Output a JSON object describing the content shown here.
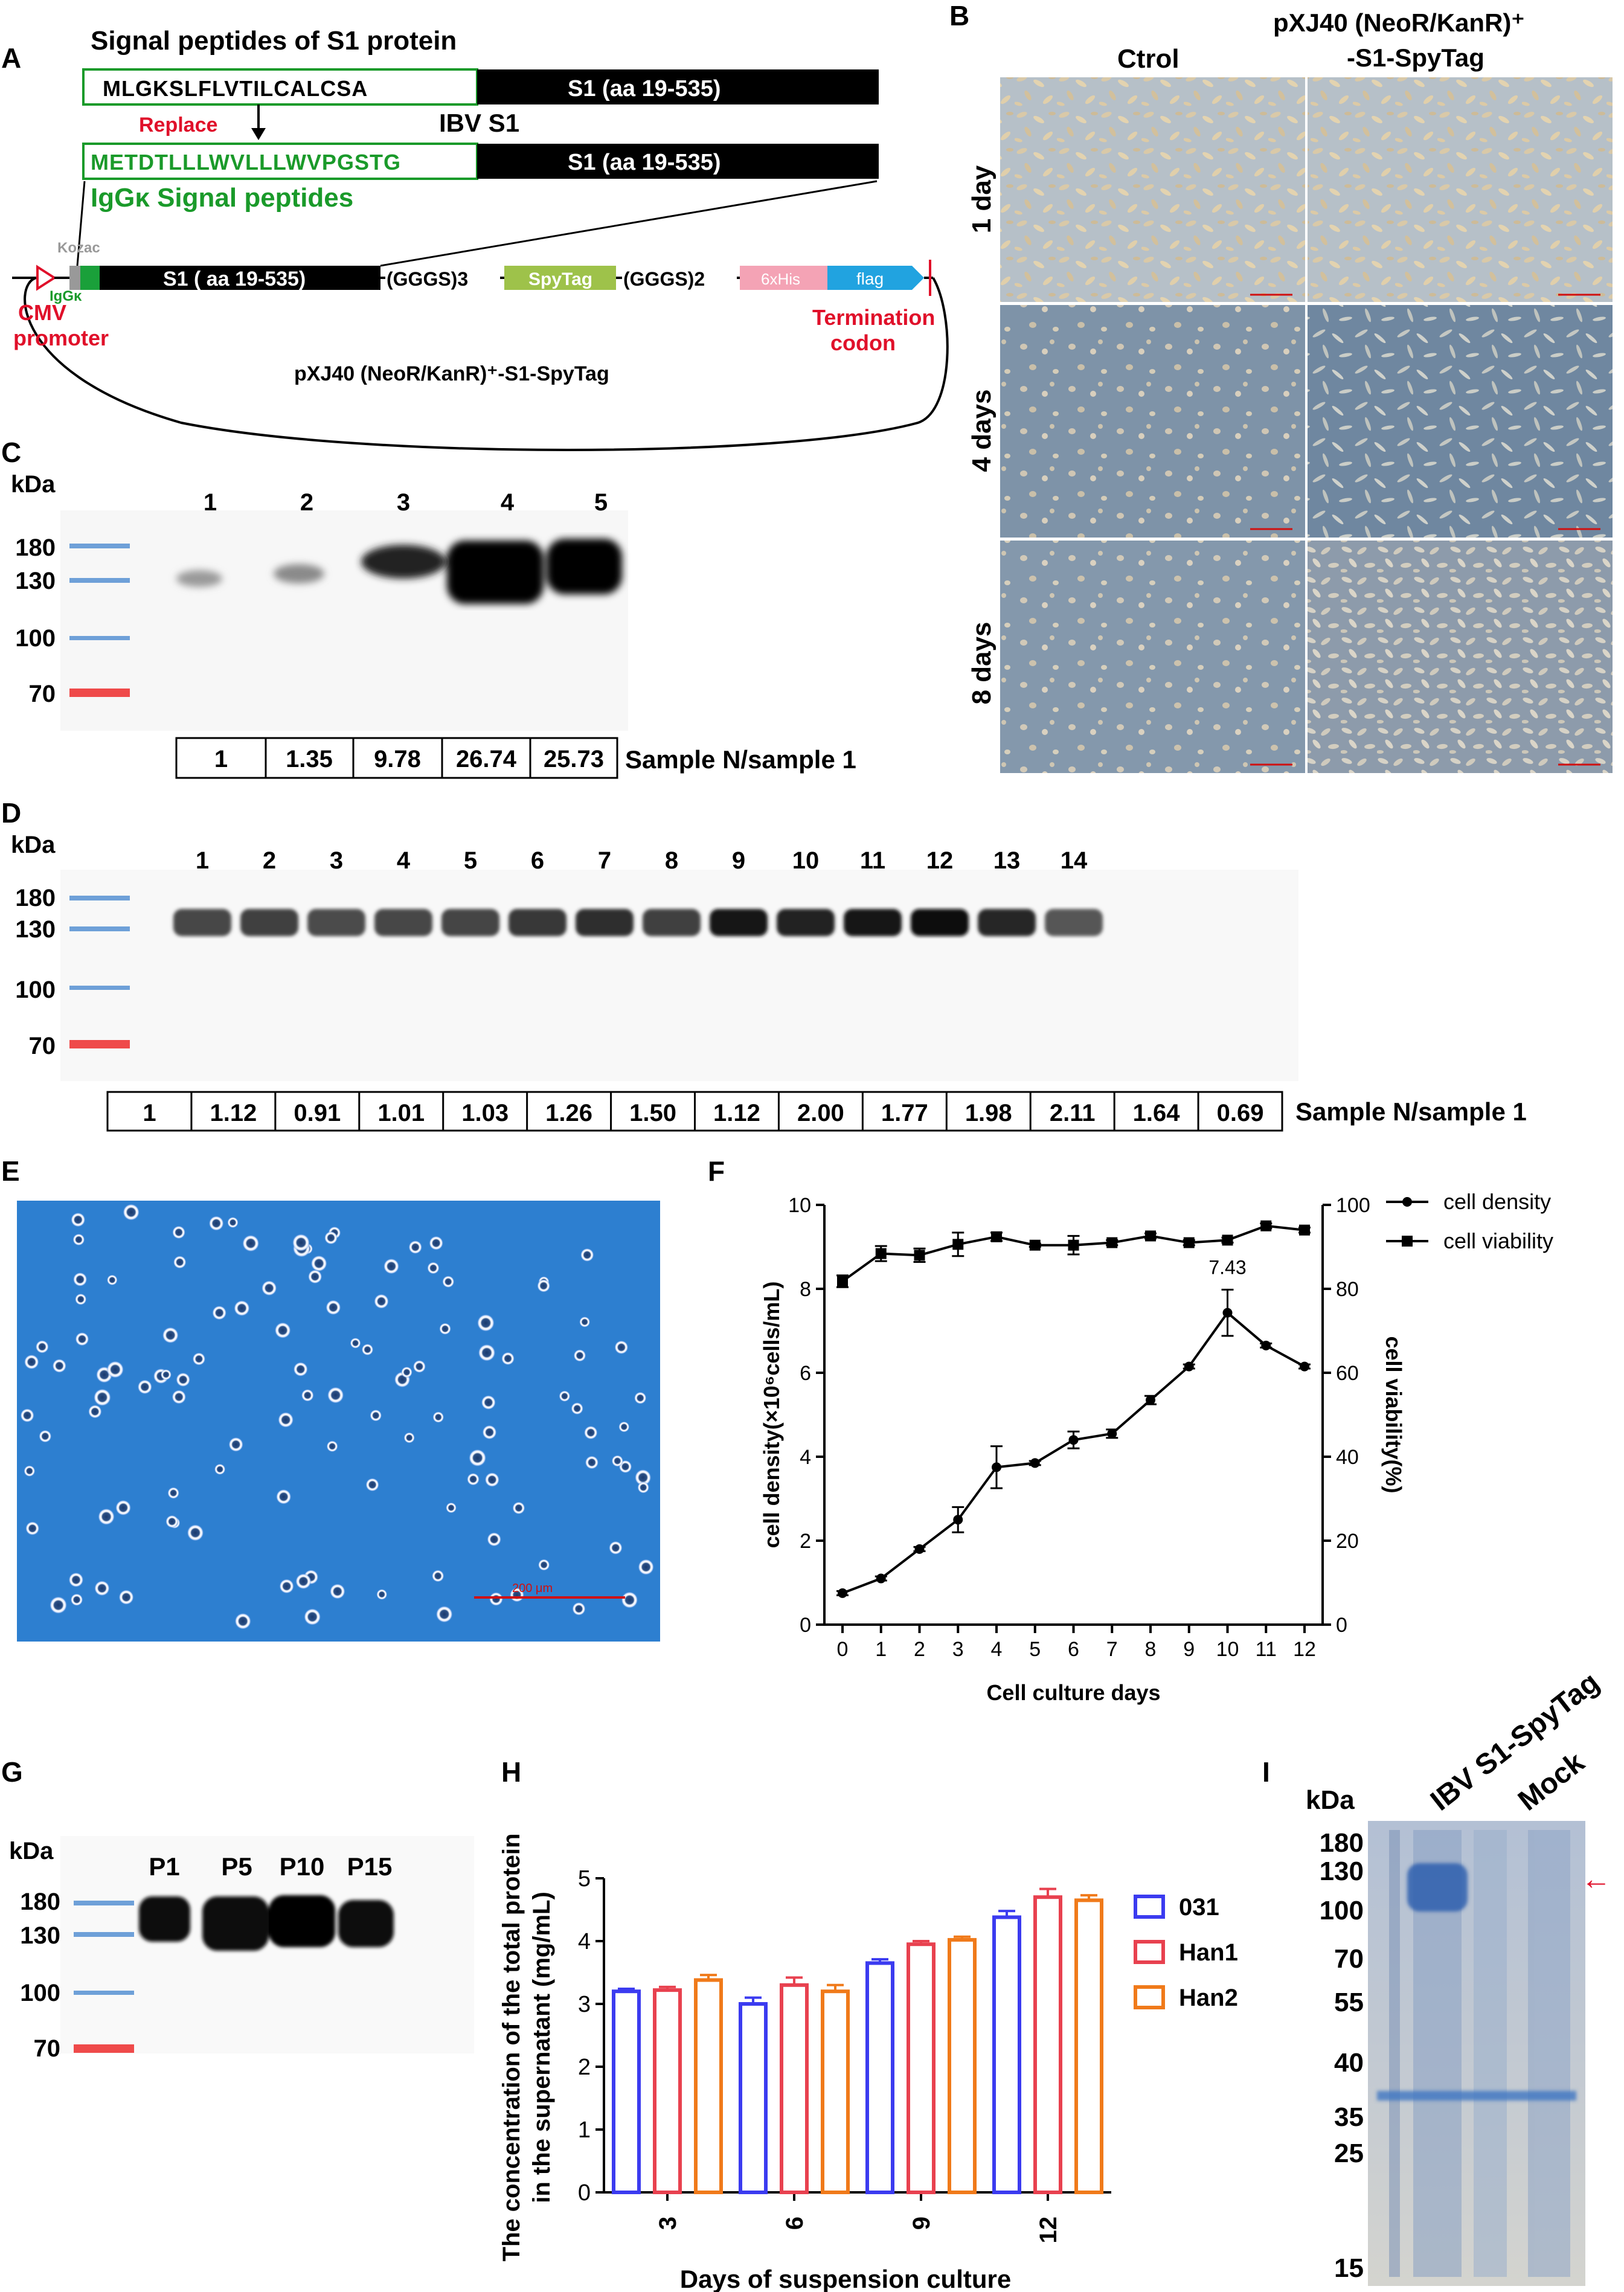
{
  "panels": {
    "A": {
      "letter": "A",
      "title": "Signal peptides of S1 protein",
      "native_signal": "MLGKSLFLVTILCALCSA",
      "s1_label": "S1 (aa 19-535)",
      "ibv_label": "IBV S1",
      "replace_label": "Replace",
      "igk_signal": "METDTLLLWVLLLWVPGSTG",
      "igk_label": "IgGκ Signal peptides",
      "kozac": "Kozac",
      "igk_short": "IgGκ",
      "s1_construct": "S1 ( aa 19-535)",
      "linker1": "(GGGS)3",
      "spytag": "SpyTag",
      "linker2": "(GGGS)2",
      "his": "6xHis",
      "flag": "flag",
      "cmv": "CMV",
      "promoter": "promoter",
      "termination": "Termination",
      "codon": "codon",
      "plasmid": "pXJ40 (NeoR/KanR)⁺-S1-SpyTag",
      "colors": {
        "green": "#1a9a2a",
        "red": "#e0102a",
        "spytag": "#9ec24a",
        "his": "#f4a3b5",
        "flag": "#21a3e0"
      }
    },
    "B": {
      "letter": "B",
      "col1": "Ctrol",
      "col2_line1": "pXJ40 (NeoR/KanR)⁺",
      "col2_line2": "-S1-SpyTag",
      "rows": [
        "1 day",
        "4 days",
        "8 days"
      ]
    },
    "C": {
      "letter": "C",
      "kda": "kDa",
      "markers": [
        "180",
        "130",
        "100",
        "70"
      ],
      "lanes": [
        "1",
        "2",
        "3",
        "4",
        "5"
      ],
      "ratios": [
        "1",
        "1.35",
        "9.78",
        "26.74",
        "25.73"
      ],
      "ratio_label": "Sample N/sample 1"
    },
    "D": {
      "letter": "D",
      "kda": "kDa",
      "markers": [
        "180",
        "130",
        "100",
        "70"
      ],
      "lanes": [
        "1",
        "2",
        "3",
        "4",
        "5",
        "6",
        "7",
        "8",
        "9",
        "10",
        "11",
        "12",
        "13",
        "14"
      ],
      "ratios": [
        "1",
        "1.12",
        "0.91",
        "1.01",
        "1.03",
        "1.26",
        "1.50",
        "1.12",
        "2.00",
        "1.77",
        "1.98",
        "2.11",
        "1.64",
        "0.69"
      ],
      "ratio_label": "Sample N/sample 1"
    },
    "E": {
      "letter": "E",
      "scale": "200 μm"
    },
    "F": {
      "letter": "F",
      "annotation": "7.43"
    },
    "G": {
      "letter": "G",
      "kda": "kDa",
      "markers": [
        "180",
        "130",
        "100",
        "70"
      ],
      "lanes": [
        "P1",
        "P5",
        "P10",
        "P15"
      ]
    },
    "H": {
      "letter": "H"
    },
    "I": {
      "letter": "I",
      "kda": "kDa",
      "markers": [
        "180",
        "130",
        "100",
        "70",
        "55",
        "40",
        "35",
        "25",
        "15"
      ],
      "lanes": [
        "IBV S1-SpyTag",
        "Mock"
      ],
      "arrow": "←"
    }
  },
  "chart_data": [
    {
      "type": "line",
      "panel": "F",
      "xlabel": "Cell culture days",
      "ylabel_left": "cell density(×10⁶cells/mL)",
      "ylabel_right": "cell viability(%)",
      "x": [
        0,
        1,
        2,
        3,
        4,
        5,
        6,
        7,
        8,
        9,
        10,
        11,
        12
      ],
      "xlim": [
        0,
        12
      ],
      "ylim_left": [
        0,
        10
      ],
      "ylim_right": [
        0,
        100
      ],
      "yticks_left": [
        0,
        2,
        4,
        6,
        8,
        10
      ],
      "yticks_right": [
        0,
        20,
        40,
        60,
        80,
        100
      ],
      "legend_position": "top-right",
      "series": [
        {
          "name": "cell density",
          "axis": "left",
          "marker": "circle",
          "values": [
            0.75,
            1.1,
            1.8,
            2.5,
            3.75,
            3.85,
            4.4,
            4.55,
            5.35,
            6.15,
            7.43,
            6.65,
            6.15
          ],
          "errors": [
            0.05,
            0.05,
            0.05,
            0.3,
            0.5,
            0.05,
            0.2,
            0.1,
            0.1,
            0.05,
            0.55,
            0.05,
            0.05
          ]
        },
        {
          "name": "cell viability",
          "axis": "right",
          "marker": "square",
          "values": [
            81.8,
            88.4,
            88.0,
            90.6,
            92.4,
            90.4,
            90.4,
            91.0,
            92.6,
            91.0,
            91.6,
            95.0,
            94.0
          ],
          "errors": [
            1.4,
            1.8,
            1.6,
            2.8,
            1.0,
            0.4,
            2.2,
            0.6,
            0.6,
            0.6,
            0.6,
            0.6,
            0.6
          ]
        }
      ]
    },
    {
      "type": "bar",
      "panel": "H",
      "xlabel": "Days of suspension culture",
      "ylabel": "The concentration of the total protein in the supernatant (mg/mL)",
      "categories": [
        "3",
        "6",
        "9",
        "12"
      ],
      "ylim": [
        0,
        5
      ],
      "yticks": [
        0,
        1,
        2,
        3,
        4,
        5
      ],
      "legend_position": "top-right",
      "series": [
        {
          "name": "031",
          "color": "#3b3bf0",
          "values": [
            3.2,
            3.0,
            3.65,
            4.38
          ],
          "errors": [
            0.04,
            0.1,
            0.06,
            0.1
          ]
        },
        {
          "name": "Han1",
          "color": "#e8414f",
          "values": [
            3.22,
            3.3,
            3.95,
            4.7
          ],
          "errors": [
            0.05,
            0.12,
            0.05,
            0.13
          ]
        },
        {
          "name": "Han2",
          "color": "#f07a1a",
          "values": [
            3.38,
            3.2,
            4.02,
            4.65
          ],
          "errors": [
            0.08,
            0.1,
            0.05,
            0.08
          ]
        }
      ]
    }
  ]
}
